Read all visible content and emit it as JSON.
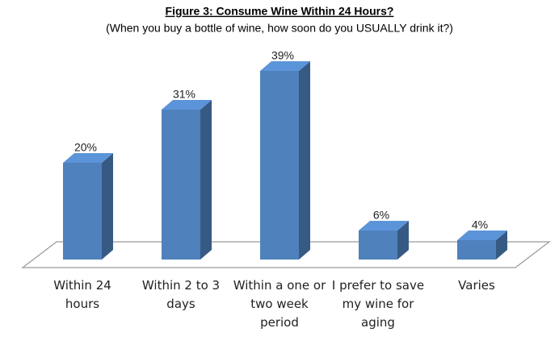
{
  "chart_data": {
    "type": "bar3d",
    "title": "Figure 3: Consume Wine Within 24 Hours?",
    "subtitle": "(When you buy a bottle of wine, how soon do you USUALLY drink it?)",
    "categories": [
      "Within 24 hours",
      "Within 2 to 3 days",
      "Within a one or two week period",
      "I prefer to save my wine for aging",
      "Varies"
    ],
    "values": [
      20,
      31,
      39,
      6,
      4
    ],
    "value_labels": [
      "20%",
      "31%",
      "39%",
      "6%",
      "4%"
    ],
    "color": "#4f81bd"
  }
}
